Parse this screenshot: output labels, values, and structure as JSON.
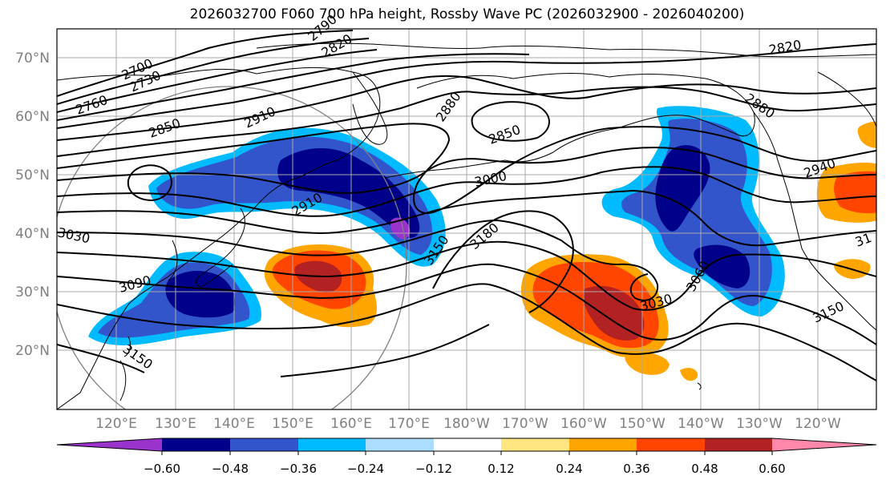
{
  "title": "2026032700 F060 700 hPa height, Rossby Wave PC (2026032900 - 2026040200)",
  "latitude_labels": [
    "70°N",
    "60°N",
    "50°N",
    "40°N",
    "30°N",
    "20°N"
  ],
  "longitude_labels": [
    "120°E",
    "130°E",
    "140°E",
    "150°E",
    "160°E",
    "170°E",
    "180°W",
    "170°W",
    "160°W",
    "150°W",
    "140°W",
    "130°W",
    "120°W"
  ],
  "contour_labels": [
    "2700",
    "2730",
    "2760",
    "2790",
    "2820",
    "2820",
    "2850",
    "2850",
    "2880",
    "2880",
    "2910",
    "2910",
    "2940",
    "3000",
    "3030",
    "3030",
    "3060",
    "3090",
    "3150",
    "3150",
    "3150",
    "3180",
    "31"
  ],
  "colorbar": {
    "tick_labels": [
      "−0.60",
      "−0.48",
      "−0.36",
      "−0.24",
      "−0.12",
      "0.12",
      "0.24",
      "0.36",
      "0.48",
      "0.60"
    ],
    "colors": [
      "#9933cc",
      "#00008b",
      "#3355cc",
      "#00bbff",
      "#aaddff",
      "#ffffff",
      "#ffe680",
      "#ffa500",
      "#ff4500",
      "#b22222",
      "#ff88aa"
    ]
  },
  "colors": {
    "contour": "#000000",
    "coastline": "#000000",
    "grid": "#a9a9a9",
    "axis_label": "#808080",
    "circle": "#808080"
  }
}
